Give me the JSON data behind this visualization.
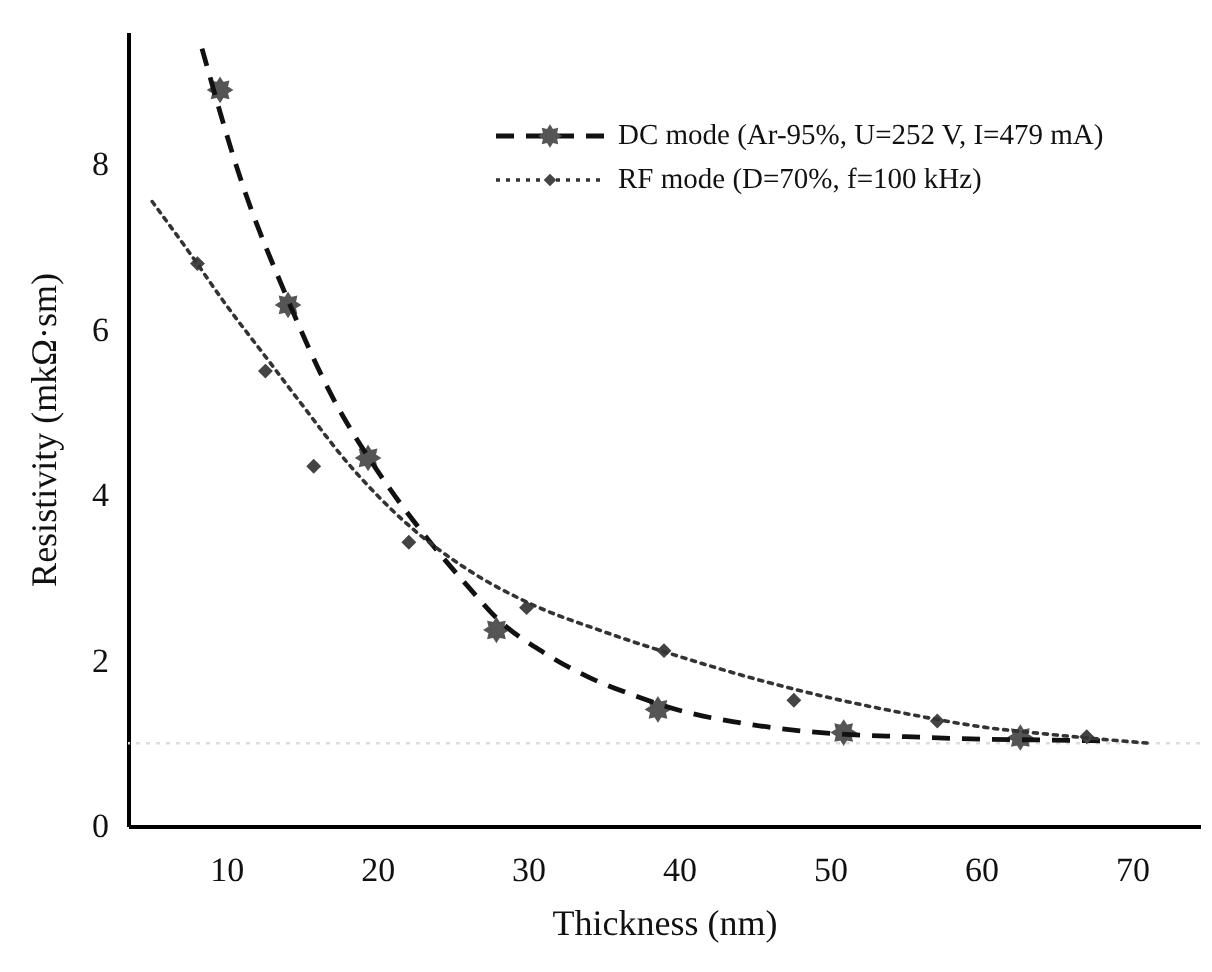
{
  "chart_data": {
    "type": "scatter",
    "xlabel": "Thickness (nm)",
    "ylabel": "Resistivity (mkΩ·sm)",
    "xlim": [
      3.5,
      74.5
    ],
    "xticks": [
      10,
      20,
      30,
      40,
      50,
      60,
      70
    ],
    "ylim": [
      0,
      9.6
    ],
    "yticks": [
      0,
      2,
      4,
      6,
      8
    ],
    "legend": "top right",
    "ref_lines": [
      {
        "axis": "y",
        "value": 1,
        "color": "#dddddd",
        "line_style": "dotted"
      }
    ],
    "series": [
      {
        "name": "DC mode (Ar-95%, U=252 V, I=479 mA)",
        "marker": "star",
        "color": "#555555",
        "x": [
          9.6,
          14.1,
          19.4,
          27.9,
          38.6,
          50.9,
          62.6
        ],
        "values": [
          8.9,
          6.3,
          4.45,
          2.37,
          1.41,
          1.13,
          1.07
        ]
      },
      {
        "type": "line",
        "line_style": "dashed",
        "color": "#111111",
        "x": [
          8.4,
          11,
          14,
          17,
          20,
          23,
          26,
          28,
          31,
          34,
          37,
          40,
          45,
          50,
          55,
          60,
          64,
          68
        ],
        "values": [
          9.4,
          7.8,
          6.4,
          5.2,
          4.3,
          3.55,
          2.9,
          2.5,
          2.1,
          1.8,
          1.58,
          1.4,
          1.22,
          1.12,
          1.08,
          1.05,
          1.04,
          1.03
        ]
      },
      {
        "name": "RF mode (D=70%, f=100 kHz)",
        "marker": "diamond",
        "color": "#444444",
        "x": [
          8.1,
          12.6,
          15.8,
          22.1,
          29.9,
          39.0,
          47.6,
          57.1,
          67.0
        ],
        "values": [
          6.8,
          5.5,
          4.35,
          3.43,
          2.64,
          2.12,
          1.52,
          1.27,
          1.08
        ]
      },
      {
        "type": "line",
        "line_style": "dotted",
        "color": "#333333",
        "x": [
          5.1,
          7.5,
          10,
          12.5,
          15,
          18,
          22,
          26,
          30,
          35,
          40,
          45,
          50,
          55,
          60,
          65,
          71.2
        ],
        "values": [
          7.55,
          6.95,
          6.3,
          5.7,
          5.1,
          4.4,
          3.65,
          3.1,
          2.7,
          2.35,
          2.05,
          1.78,
          1.55,
          1.36,
          1.2,
          1.1,
          1.0
        ]
      }
    ]
  }
}
